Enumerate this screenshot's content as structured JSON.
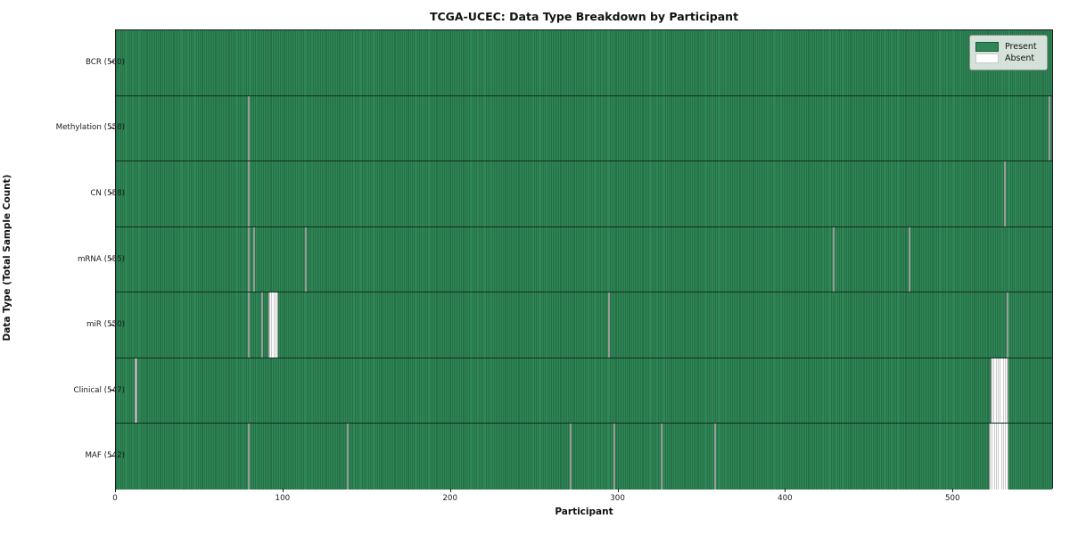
{
  "title": "TCGA-UCEC: Data Type Breakdown by Participant",
  "axes": {
    "xlabel": "Participant",
    "ylabel": "Data Type (Total Sample Count)"
  },
  "legend": {
    "present_label": "Present",
    "absent_label": "Absent",
    "position": "upper right"
  },
  "colors": {
    "present_fill": "#2f8757",
    "present_edge": "#1c5937",
    "absent_fill": "#fdfdfd",
    "absent_edge": "#9a9a9a",
    "row_separator": "#142d1c",
    "legend_bg": "#edf0ed"
  },
  "chart_data": {
    "type": "heatmap",
    "title": "TCGA-UCEC: Data Type Breakdown by Participant",
    "xlabel": "Participant",
    "ylabel": "Data Type (Total Sample Count)",
    "legend": [
      "Present",
      "Absent"
    ],
    "legend_position": "upper right",
    "grid": false,
    "n_participants": 560,
    "xlim": [
      0,
      560
    ],
    "x_ticks": [
      0,
      100,
      200,
      300,
      400,
      500
    ],
    "rows": [
      {
        "label": "BCR (560)",
        "data_type": "BCR",
        "present_count": 560,
        "absent_count": 0,
        "absent_participants": []
      },
      {
        "label": "Methylation (558)",
        "data_type": "Methylation",
        "present_count": 558,
        "absent_count": 2,
        "absent_participants": [
          79,
          557
        ]
      },
      {
        "label": "CN (558)",
        "data_type": "CN",
        "present_count": 558,
        "absent_count": 2,
        "absent_participants": [
          79,
          530
        ]
      },
      {
        "label": "mRNA (555)",
        "data_type": "mRNA",
        "present_count": 555,
        "absent_count": 5,
        "absent_participants": [
          79,
          82,
          113,
          428,
          473
        ]
      },
      {
        "label": "miR (550)",
        "data_type": "miR",
        "present_count": 550,
        "absent_count": 10,
        "absent_participants": [
          79,
          87,
          91,
          92,
          93,
          94,
          95,
          96,
          294,
          532
        ]
      },
      {
        "label": "Clinical (547)",
        "data_type": "Clinical",
        "present_count": 547,
        "absent_count": 13,
        "absent_participants": [
          11,
          12,
          522,
          523,
          524,
          525,
          526,
          527,
          528,
          529,
          530,
          531,
          532
        ]
      },
      {
        "label": "MAF (542)",
        "data_type": "MAF",
        "present_count": 542,
        "absent_count": 18,
        "absent_participants": [
          79,
          138,
          271,
          297,
          325,
          357,
          521,
          522,
          523,
          524,
          525,
          526,
          527,
          528,
          529,
          530,
          531,
          532
        ]
      }
    ]
  }
}
